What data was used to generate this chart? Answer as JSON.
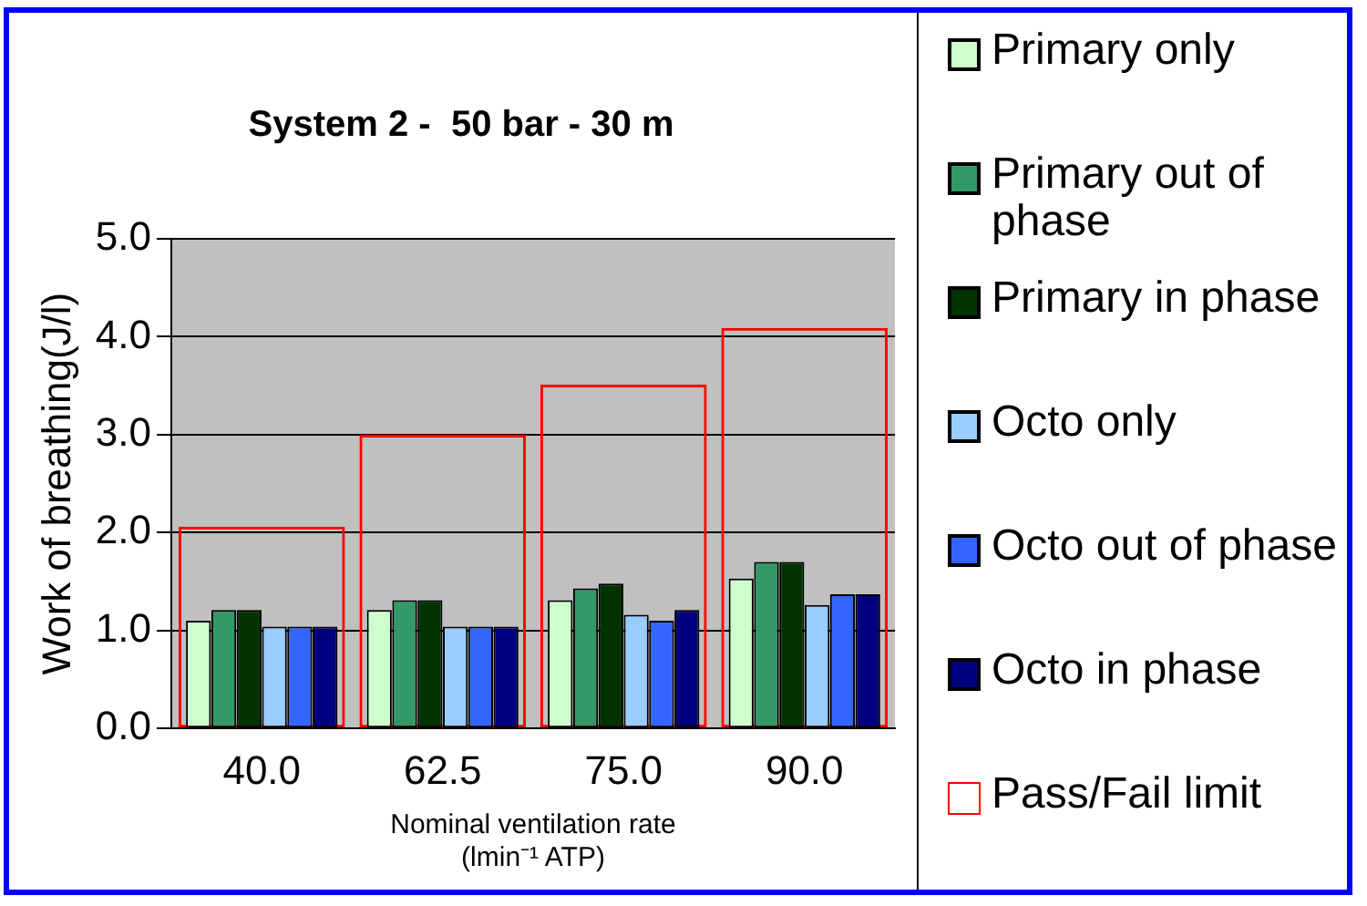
{
  "chart_data": {
    "type": "bar",
    "title": "System 2 -  50 bar - 30 m",
    "xlabel": "Nominal ventilation rate\n(lmin⁻¹ ATP)",
    "ylabel": "Work of breathing(J/l)",
    "categories": [
      "40.0",
      "62.5",
      "75.0",
      "90.0"
    ],
    "series": [
      {
        "name": "Primary only",
        "color": "#ccffcc",
        "values": [
          1.1,
          1.21,
          1.31,
          1.53
        ]
      },
      {
        "name": "Primary out of phase",
        "color": "#339966",
        "values": [
          1.21,
          1.31,
          1.43,
          1.7
        ]
      },
      {
        "name": "Primary in phase",
        "color": "#003300",
        "values": [
          1.21,
          1.31,
          1.48,
          1.7
        ]
      },
      {
        "name": "Octo only",
        "color": "#99ccff",
        "values": [
          1.04,
          1.04,
          1.16,
          1.26
        ]
      },
      {
        "name": "Octo out of phase",
        "color": "#3366ff",
        "values": [
          1.04,
          1.04,
          1.1,
          1.37
        ]
      },
      {
        "name": "Octo in phase",
        "color": "#000080",
        "values": [
          1.04,
          1.04,
          1.21,
          1.37
        ]
      },
      {
        "name": "Pass/Fail limit",
        "color": "#ff0000",
        "type": "bar",
        "values": [
          2.06,
          3.0,
          3.51,
          4.09
        ]
      }
    ],
    "ylim": [
      0,
      5
    ],
    "yticks": [
      {
        "value": 0,
        "label": "0.0"
      },
      {
        "value": 1,
        "label": "1.0"
      },
      {
        "value": 2,
        "label": "2.0"
      },
      {
        "value": 3,
        "label": "3.0"
      },
      {
        "value": 4,
        "label": "4.0"
      },
      {
        "value": 5,
        "label": "5.0"
      }
    ],
    "grid": "y",
    "legend": "right"
  }
}
